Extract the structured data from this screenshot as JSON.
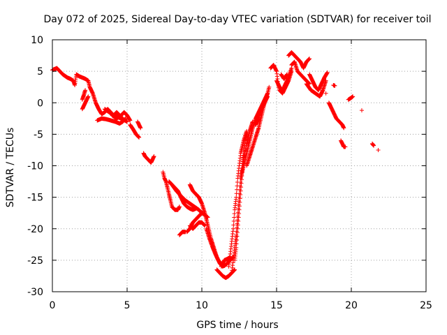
{
  "chart_data": {
    "type": "scatter",
    "title": "Day 072 of 2025, Sidereal Day-to-day VTEC variation (SDTVAR) for receiver toil",
    "xlabel": "GPS time / hours",
    "ylabel": "SDTVAR / TECUs",
    "xlim": [
      0,
      25
    ],
    "ylim": [
      -30,
      10
    ],
    "xticks": [
      0,
      5,
      10,
      15,
      20,
      25
    ],
    "yticks": [
      -30,
      -25,
      -20,
      -15,
      -10,
      -5,
      0,
      5,
      10
    ],
    "grid": true,
    "marker": "+",
    "color": "#ff0000",
    "series": [
      {
        "name": "SDTVAR",
        "tracks": [
          [
            [
              0.0,
              5.2
            ],
            [
              0.3,
              5.5
            ],
            [
              0.5,
              5.0
            ],
            [
              0.7,
              4.5
            ],
            [
              1.0,
              4.0
            ],
            [
              1.2,
              3.8
            ],
            [
              1.4,
              3.5
            ],
            [
              1.5,
              2.8
            ],
            [
              1.6,
              4.5
            ],
            [
              1.8,
              4.2
            ],
            [
              2.0,
              4.0
            ],
            [
              2.2,
              3.8
            ],
            [
              2.4,
              3.5
            ],
            [
              2.5,
              2.5
            ],
            [
              2.7,
              1.5
            ],
            [
              2.9,
              0.0
            ],
            [
              3.1,
              -1.0
            ],
            [
              3.3,
              -1.8
            ],
            [
              3.5,
              -1.5
            ],
            [
              3.7,
              -1.0
            ],
            [
              3.9,
              -1.5
            ],
            [
              4.1,
              -2.0
            ],
            [
              4.3,
              -1.5
            ],
            [
              4.5,
              -2.0
            ],
            [
              4.7,
              -2.5
            ]
          ],
          [
            [
              2.0,
              0.5
            ],
            [
              2.1,
              1.2
            ],
            [
              2.2,
              2.0
            ]
          ],
          [
            [
              2.0,
              -1.0
            ],
            [
              2.2,
              0.0
            ],
            [
              2.4,
              1.0
            ]
          ],
          [
            [
              3.0,
              -2.8
            ],
            [
              3.3,
              -2.5
            ],
            [
              3.6,
              -2.6
            ],
            [
              3.9,
              -2.8
            ],
            [
              4.2,
              -3.0
            ],
            [
              4.5,
              -3.3
            ],
            [
              4.7,
              -3.0
            ],
            [
              4.9,
              -2.5
            ]
          ],
          [
            [
              3.5,
              -1.0
            ],
            [
              3.8,
              -1.5
            ],
            [
              4.1,
              -2.0
            ],
            [
              4.4,
              -2.3
            ],
            [
              4.7,
              -2.6
            ],
            [
              5.0,
              -3.0
            ]
          ],
          [
            [
              4.0,
              -2.0
            ],
            [
              4.3,
              -2.5
            ],
            [
              4.6,
              -2.0
            ],
            [
              4.8,
              -1.5
            ],
            [
              5.0,
              -2.0
            ],
            [
              5.2,
              -2.8
            ]
          ],
          [
            [
              5.2,
              -3.5
            ],
            [
              5.4,
              -4.2
            ],
            [
              5.6,
              -5.0
            ],
            [
              5.8,
              -5.5
            ]
          ],
          [
            [
              5.7,
              -3.0
            ],
            [
              5.8,
              -3.5
            ],
            [
              5.9,
              -4.0
            ]
          ],
          [
            [
              6.1,
              -8.0
            ],
            [
              6.2,
              -8.5
            ],
            [
              6.4,
              -9.0
            ],
            [
              6.6,
              -9.5
            ],
            [
              6.7,
              -9.0
            ],
            [
              6.8,
              -8.5
            ]
          ],
          [
            [
              7.4,
              -11.0
            ],
            [
              7.5,
              -12.0
            ],
            [
              7.6,
              -12.5
            ],
            [
              7.7,
              -13.5
            ],
            [
              7.8,
              -14.5
            ],
            [
              7.9,
              -15.5
            ],
            [
              8.0,
              -16.5
            ],
            [
              8.2,
              -17.0
            ],
            [
              8.4,
              -17.0
            ],
            [
              8.5,
              -16.5
            ]
          ],
          [
            [
              7.8,
              -12.5
            ],
            [
              8.0,
              -13.0
            ],
            [
              8.2,
              -13.5
            ],
            [
              8.4,
              -14.0
            ],
            [
              8.6,
              -15.0
            ],
            [
              8.8,
              -16.0
            ],
            [
              9.0,
              -16.5
            ],
            [
              9.2,
              -16.8
            ],
            [
              9.4,
              -17.0
            ],
            [
              9.6,
              -16.8
            ]
          ],
          [
            [
              8.0,
              -13.0
            ],
            [
              8.3,
              -14.0
            ],
            [
              8.6,
              -14.8
            ],
            [
              8.9,
              -15.5
            ],
            [
              9.2,
              -16.0
            ],
            [
              9.5,
              -16.5
            ],
            [
              9.8,
              -17.0
            ],
            [
              10.0,
              -17.5
            ]
          ],
          [
            [
              8.5,
              -21.0
            ],
            [
              8.7,
              -20.5
            ],
            [
              8.9,
              -20.5
            ]
          ],
          [
            [
              9.0,
              -20.5
            ],
            [
              9.2,
              -20.0
            ],
            [
              9.4,
              -19.0
            ],
            [
              9.6,
              -18.5
            ],
            [
              9.8,
              -18.0
            ],
            [
              10.0,
              -17.5
            ],
            [
              10.2,
              -17.8
            ],
            [
              10.4,
              -18.2
            ]
          ],
          [
            [
              9.2,
              -19.5
            ],
            [
              9.4,
              -20.0
            ],
            [
              9.6,
              -19.5
            ],
            [
              9.8,
              -19.0
            ],
            [
              10.0,
              -19.0
            ],
            [
              10.2,
              -19.5
            ]
          ],
          [
            [
              9.2,
              -13.0
            ],
            [
              9.4,
              -14.0
            ],
            [
              9.6,
              -14.5
            ],
            [
              9.8,
              -15.0
            ],
            [
              10.0,
              -16.0
            ],
            [
              10.2,
              -17.5
            ],
            [
              10.4,
              -19.5
            ],
            [
              10.6,
              -21.5
            ],
            [
              10.8,
              -23.0
            ],
            [
              11.0,
              -24.5
            ],
            [
              11.2,
              -25.5
            ],
            [
              11.4,
              -26.0
            ],
            [
              11.5,
              -25.8
            ]
          ],
          [
            [
              10.3,
              -20.0
            ],
            [
              10.5,
              -21.5
            ],
            [
              10.7,
              -22.8
            ],
            [
              10.9,
              -24.0
            ],
            [
              11.1,
              -25.0
            ],
            [
              11.3,
              -25.6
            ],
            [
              11.5,
              -25.9
            ],
            [
              11.7,
              -25.5
            ],
            [
              11.9,
              -25.0
            ],
            [
              12.1,
              -24.5
            ]
          ],
          [
            [
              11.0,
              -26.5
            ],
            [
              11.2,
              -27.0
            ],
            [
              11.4,
              -27.5
            ],
            [
              11.6,
              -27.8
            ],
            [
              11.8,
              -27.5
            ],
            [
              12.0,
              -27.0
            ],
            [
              12.2,
              -26.5
            ]
          ],
          [
            [
              11.3,
              -26.0
            ],
            [
              11.5,
              -25.0
            ],
            [
              11.7,
              -24.8
            ],
            [
              11.9,
              -24.5
            ]
          ],
          [
            [
              11.8,
              -26.0
            ],
            [
              11.9,
              -24.0
            ],
            [
              12.0,
              -22.0
            ],
            [
              12.1,
              -20.0
            ],
            [
              12.2,
              -17.0
            ],
            [
              12.3,
              -15.0
            ],
            [
              12.4,
              -12.0
            ],
            [
              12.5,
              -10.0
            ],
            [
              12.6,
              -8.0
            ],
            [
              12.8,
              -6.0
            ],
            [
              13.0,
              -4.5
            ]
          ],
          [
            [
              12.0,
              -27.0
            ],
            [
              12.1,
              -25.0
            ],
            [
              12.2,
              -23.0
            ],
            [
              12.3,
              -21.0
            ],
            [
              12.4,
              -18.0
            ],
            [
              12.5,
              -15.0
            ],
            [
              12.6,
              -12.0
            ],
            [
              12.7,
              -10.0
            ],
            [
              12.8,
              -8.0
            ],
            [
              12.9,
              -6.0
            ],
            [
              13.0,
              -5.0
            ]
          ],
          [
            [
              12.2,
              -25.0
            ],
            [
              12.3,
              -23.0
            ],
            [
              12.4,
              -20.0
            ],
            [
              12.5,
              -17.0
            ],
            [
              12.6,
              -14.0
            ],
            [
              12.7,
              -11.0
            ],
            [
              12.8,
              -9.0
            ],
            [
              13.0,
              -6.5
            ],
            [
              13.2,
              -4.5
            ],
            [
              13.4,
              -3.0
            ]
          ],
          [
            [
              12.6,
              -12.0
            ],
            [
              12.8,
              -10.0
            ],
            [
              13.0,
              -8.0
            ],
            [
              13.2,
              -6.0
            ],
            [
              13.4,
              -4.0
            ],
            [
              13.6,
              -2.5
            ],
            [
              13.8,
              -1.5
            ],
            [
              14.0,
              -0.5
            ],
            [
              14.2,
              0.5
            ],
            [
              14.4,
              1.5
            ],
            [
              14.5,
              2.5
            ]
          ],
          [
            [
              13.0,
              -10.0
            ],
            [
              13.2,
              -8.5
            ],
            [
              13.4,
              -7.0
            ],
            [
              13.6,
              -5.5
            ],
            [
              13.8,
              -4.0
            ],
            [
              14.0,
              -2.0
            ],
            [
              14.2,
              0.0
            ],
            [
              14.4,
              1.0
            ]
          ],
          [
            [
              13.6,
              -3.5
            ],
            [
              13.8,
              -2.5
            ],
            [
              14.0,
              -1.0
            ],
            [
              14.2,
              0.0
            ],
            [
              14.4,
              1.5
            ]
          ],
          [
            [
              14.6,
              5.5
            ],
            [
              14.8,
              6.0
            ],
            [
              15.0,
              5.0
            ],
            [
              15.1,
              3.0
            ],
            [
              15.2,
              2.0
            ],
            [
              15.4,
              1.5
            ],
            [
              15.6,
              2.5
            ],
            [
              15.8,
              3.5
            ],
            [
              16.0,
              5.0
            ]
          ],
          [
            [
              15.0,
              3.5
            ],
            [
              15.2,
              2.5
            ],
            [
              15.4,
              2.0
            ],
            [
              15.6,
              3.0
            ],
            [
              15.8,
              4.0
            ],
            [
              16.0,
              5.5
            ]
          ],
          [
            [
              15.3,
              4.5
            ],
            [
              15.5,
              3.8
            ],
            [
              15.7,
              4.5
            ]
          ],
          [
            [
              15.8,
              7.5
            ],
            [
              16.0,
              8.0
            ],
            [
              16.2,
              7.5
            ],
            [
              16.4,
              7.0
            ],
            [
              16.6,
              6.5
            ],
            [
              16.8,
              5.5
            ],
            [
              17.0,
              6.5
            ],
            [
              17.2,
              7.0
            ]
          ],
          [
            [
              16.0,
              6.0
            ],
            [
              16.2,
              6.5
            ],
            [
              16.4,
              5.0
            ],
            [
              16.6,
              4.5
            ],
            [
              16.8,
              4.0
            ],
            [
              17.0,
              3.5
            ],
            [
              17.2,
              3.0
            ]
          ],
          [
            [
              17.2,
              4.5
            ],
            [
              17.4,
              3.5
            ],
            [
              17.6,
              2.5
            ],
            [
              17.8,
              2.0
            ],
            [
              18.0,
              3.0
            ],
            [
              18.2,
              4.0
            ],
            [
              18.4,
              4.8
            ]
          ],
          [
            [
              17.0,
              3.0
            ],
            [
              17.3,
              2.0
            ],
            [
              17.6,
              1.5
            ],
            [
              17.9,
              1.0
            ],
            [
              18.1,
              2.0
            ],
            [
              18.3,
              3.5
            ]
          ],
          [
            [
              18.3,
              1.5
            ]
          ],
          [
            [
              18.5,
              0.0
            ],
            [
              18.6,
              -0.5
            ],
            [
              18.8,
              -1.5
            ],
            [
              19.0,
              -2.5
            ],
            [
              19.2,
              -3.0
            ],
            [
              19.4,
              -3.5
            ],
            [
              19.5,
              -4.0
            ]
          ],
          [
            [
              18.8,
              2.8
            ],
            [
              18.9,
              2.7
            ]
          ],
          [
            [
              19.3,
              -6.0
            ],
            [
              19.5,
              -7.0
            ],
            [
              19.6,
              -7.0
            ]
          ],
          [
            [
              19.8,
              0.5
            ],
            [
              20.0,
              0.8
            ],
            [
              20.1,
              1.0
            ]
          ],
          [
            [
              20.7,
              -1.2
            ]
          ],
          [
            [
              21.4,
              -6.5
            ],
            [
              21.5,
              -6.8
            ]
          ],
          [
            [
              21.8,
              -7.5
            ]
          ]
        ]
      }
    ]
  }
}
